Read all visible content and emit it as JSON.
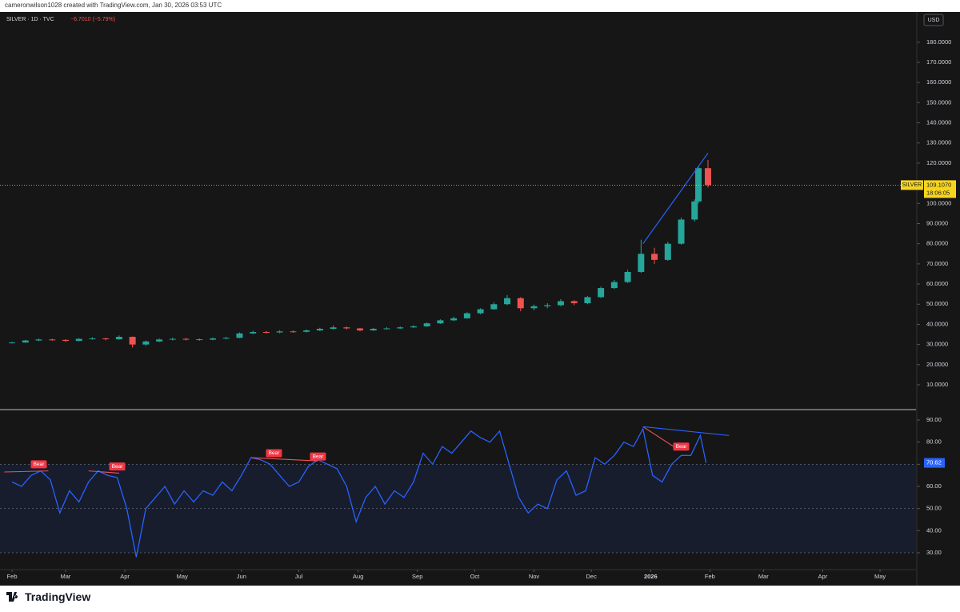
{
  "header": {
    "text": "cameronwilson1028 created with TradingView.com, Jan 30, 2026 03:53 UTC"
  },
  "footer": {
    "brand": "TradingView"
  },
  "chart_data": [
    {
      "type": "candlestick",
      "legend_title": "SILVER · 1D · TVC",
      "change_label": "−6.7010 (−5.79%)",
      "currency": "USD",
      "up_color": "#26a69a",
      "down_color": "#ef5350",
      "x": [
        0,
        7,
        14,
        21,
        28,
        35,
        42,
        49,
        56,
        63,
        70,
        77,
        84,
        91,
        98,
        105,
        112,
        119,
        126,
        133,
        140,
        147,
        154,
        161,
        168,
        175,
        182,
        189,
        196,
        203,
        210,
        217,
        224,
        231,
        238,
        245,
        252,
        259,
        266,
        273,
        280,
        287,
        294,
        301,
        308,
        315,
        322,
        329,
        336,
        343,
        350,
        357,
        359,
        364
      ],
      "open": [
        30.8,
        31.0,
        32.0,
        32.5,
        32.3,
        31.8,
        32.8,
        33.0,
        32.6,
        33.8,
        30.0,
        31.5,
        32.5,
        32.8,
        32.6,
        32.4,
        33.0,
        33.3,
        35.5,
        36.2,
        36.0,
        36.5,
        36.3,
        37.0,
        37.8,
        38.5,
        38.0,
        37.0,
        37.8,
        38.0,
        38.5,
        39.0,
        40.5,
        42.0,
        43.0,
        45.5,
        47.5,
        50.0,
        53.0,
        48.0,
        49.0,
        49.5,
        51.5,
        50.5,
        53.5,
        58.0,
        61.0,
        66.0,
        75.0,
        72.0,
        80.0,
        92.0,
        101.0,
        117.5
      ],
      "high": [
        31.4,
        32.3,
        33.0,
        32.9,
        32.6,
        33.2,
        33.6,
        33.4,
        34.5,
        34.0,
        32.0,
        33.0,
        33.4,
        33.3,
        33.0,
        33.5,
        33.8,
        36.0,
        36.9,
        36.8,
        37.1,
        37.0,
        37.5,
        38.3,
        39.5,
        38.9,
        38.3,
        38.2,
        38.6,
        39.0,
        39.6,
        41.0,
        42.5,
        43.8,
        46.0,
        48.0,
        51.0,
        54.5,
        53.5,
        49.8,
        50.5,
        52.5,
        52.0,
        54.0,
        58.8,
        62.0,
        67.0,
        82.0,
        78.0,
        81.0,
        93.0,
        102.0,
        118.5,
        121.6
      ],
      "low": [
        30.5,
        30.8,
        31.7,
        31.9,
        31.3,
        31.6,
        32.4,
        32.1,
        32.4,
        28.5,
        29.3,
        31.2,
        32.0,
        32.0,
        31.9,
        32.1,
        32.7,
        33.1,
        35.2,
        35.5,
        35.6,
        35.8,
        36.0,
        36.7,
        37.5,
        37.4,
        36.5,
        36.8,
        37.5,
        37.7,
        38.2,
        38.8,
        40.2,
        41.6,
        42.8,
        45.0,
        47.2,
        49.5,
        46.5,
        46.9,
        48.0,
        49.0,
        49.5,
        50.0,
        53.0,
        57.5,
        60.5,
        65.5,
        70.0,
        71.5,
        79.5,
        91.0,
        100.0,
        107.9
      ],
      "close": [
        31.0,
        32.0,
        32.5,
        32.3,
        31.8,
        32.8,
        33.0,
        32.6,
        33.8,
        30.0,
        31.5,
        32.5,
        32.8,
        32.6,
        32.4,
        33.0,
        33.3,
        35.5,
        36.2,
        36.0,
        36.5,
        36.3,
        37.0,
        37.8,
        38.5,
        38.0,
        37.0,
        37.8,
        38.0,
        38.5,
        39.0,
        40.5,
        42.0,
        43.0,
        45.5,
        47.5,
        50.0,
        53.0,
        48.0,
        49.0,
        49.5,
        51.5,
        50.5,
        53.5,
        58.0,
        61.0,
        66.0,
        75.0,
        72.0,
        80.0,
        92.0,
        101.0,
        117.5,
        109.107
      ],
      "xlim": [
        -6.3,
        472.8
      ],
      "ylim": [
        -2.3,
        195
      ],
      "yticks": [
        {
          "value": 10,
          "label": "10.0000"
        },
        {
          "value": 20,
          "label": "20.0000"
        },
        {
          "value": 30,
          "label": "30.0000"
        },
        {
          "value": 40,
          "label": "40.0000"
        },
        {
          "value": 50,
          "label": "50.0000"
        },
        {
          "value": 60,
          "label": "60.0000"
        },
        {
          "value": 70,
          "label": "70.0000"
        },
        {
          "value": 80,
          "label": "80.0000"
        },
        {
          "value": 90,
          "label": "90.0000"
        },
        {
          "value": 100,
          "label": "100.0000"
        },
        {
          "value": 120,
          "label": "120.0000"
        },
        {
          "value": 130,
          "label": "130.0000"
        },
        {
          "value": 140,
          "label": "140.0000"
        },
        {
          "value": 150,
          "label": "150.0000"
        },
        {
          "value": 160,
          "label": "160.0000"
        },
        {
          "value": 170,
          "label": "170.0000"
        },
        {
          "value": 180,
          "label": "180.0000"
        }
      ],
      "last_price": {
        "value": 109.107,
        "label": "109.1070",
        "symbol": "SILVER",
        "countdown": "18:06:05",
        "color": "#f7d51d"
      },
      "trendlines": [
        {
          "color": "#2962ff",
          "x": [
            330,
            364
          ],
          "y": [
            80,
            125
          ]
        }
      ]
    },
    {
      "type": "line",
      "color": "#2962ff",
      "x": [
        0,
        5,
        10,
        15,
        20,
        25,
        30,
        35,
        40,
        45,
        50,
        55,
        60,
        65,
        70,
        75,
        80,
        85,
        90,
        95,
        100,
        105,
        110,
        115,
        120,
        125,
        130,
        135,
        140,
        145,
        150,
        155,
        160,
        165,
        170,
        175,
        180,
        185,
        190,
        195,
        200,
        205,
        210,
        215,
        220,
        225,
        230,
        235,
        240,
        245,
        250,
        255,
        260,
        265,
        270,
        275,
        280,
        285,
        290,
        295,
        300,
        305,
        310,
        315,
        320,
        325,
        330,
        335,
        340,
        345,
        350,
        355,
        360,
        363
      ],
      "values": [
        62,
        60,
        65,
        67,
        63,
        48,
        58,
        53,
        62,
        67,
        65,
        64,
        50,
        28,
        50,
        55,
        60,
        52,
        58,
        53,
        58,
        56,
        62,
        58,
        65,
        73,
        72,
        70,
        65,
        60,
        62,
        69,
        72,
        70,
        68,
        60,
        44,
        55,
        60,
        52,
        58,
        55,
        62,
        75,
        70,
        78,
        75,
        80,
        85,
        82,
        80,
        85,
        70,
        55,
        48,
        52,
        50,
        63,
        67,
        56,
        58,
        73,
        70,
        74,
        80,
        78,
        86,
        65,
        62,
        70,
        74,
        74,
        83,
        70.62
      ],
      "last_value": 70.62,
      "xlim": [
        -6.3,
        472.8
      ],
      "xticks": [
        {
          "value": 0,
          "label": "Feb"
        },
        {
          "value": 28,
          "label": "Mar"
        },
        {
          "value": 59,
          "label": "Apr"
        },
        {
          "value": 89,
          "label": "May"
        },
        {
          "value": 120,
          "label": "Jun"
        },
        {
          "value": 150,
          "label": "Jul"
        },
        {
          "value": 181,
          "label": "Aug"
        },
        {
          "value": 212,
          "label": "Sep"
        },
        {
          "value": 242,
          "label": "Oct"
        },
        {
          "value": 273,
          "label": "Nov"
        },
        {
          "value": 303,
          "label": "Dec"
        },
        {
          "value": 334,
          "label": "2026"
        },
        {
          "value": 365,
          "label": "Feb"
        },
        {
          "value": 393,
          "label": "Mar"
        },
        {
          "value": 424,
          "label": "Apr"
        },
        {
          "value": 454,
          "label": "May"
        }
      ],
      "ylim": [
        22.4,
        94.7
      ],
      "yticks": [
        {
          "value": 30,
          "label": "30.00"
        },
        {
          "value": 40,
          "label": "40.00"
        },
        {
          "value": 50,
          "label": "50.00"
        },
        {
          "value": 60,
          "label": "60.00"
        },
        {
          "value": 70,
          "label": "70.00"
        },
        {
          "value": 80,
          "label": "80.00"
        },
        {
          "value": 90,
          "label": "90.00"
        }
      ],
      "levels": [
        70,
        50,
        30
      ],
      "band_fill": [
        30,
        70
      ],
      "annotations": [
        {
          "text": "Bear",
          "x": 14,
          "y": 70
        },
        {
          "text": "Bear",
          "x": 55,
          "y": 69
        },
        {
          "text": "Bear",
          "x": 137,
          "y": 75
        },
        {
          "text": "Bear",
          "x": 160,
          "y": 73.5
        },
        {
          "text": "Bear",
          "x": 350,
          "y": 78
        }
      ],
      "divergence_lines": [
        {
          "color": "#ef5350",
          "x": [
            -4,
            19
          ],
          "y": [
            66.5,
            67
          ]
        },
        {
          "color": "#ef5350",
          "x": [
            40,
            56
          ],
          "y": [
            67,
            66
          ]
        },
        {
          "color": "#ef5350",
          "x": [
            125,
            160
          ],
          "y": [
            73,
            71.5
          ]
        },
        {
          "color": "#ef5350",
          "x": [
            330,
            346
          ],
          "y": [
            87,
            78
          ]
        },
        {
          "color": "#2962ff",
          "x": [
            330,
            375
          ],
          "y": [
            87,
            83
          ]
        }
      ]
    }
  ]
}
